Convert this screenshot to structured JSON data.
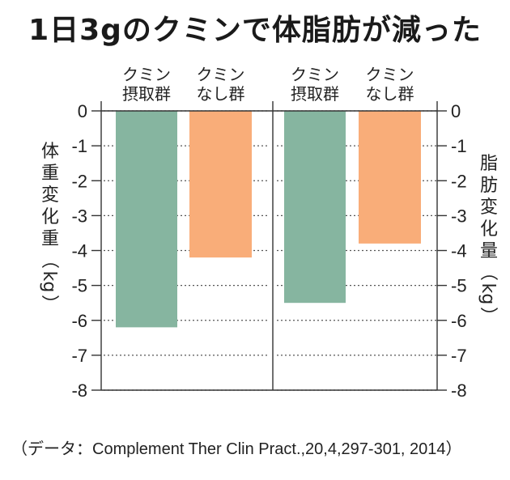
{
  "title": "1日3gのクミンで体脂肪が減った",
  "source": "（データ：Complement Ther Clin Pract.,20,4,297-301, 2014）",
  "chart_data": {
    "type": "bar",
    "panels": [
      {
        "ylabel": "体重変化重（kg）",
        "ylim": [
          -8,
          0
        ],
        "bars": [
          {
            "category": [
              "クミン",
              "摂取群"
            ],
            "value": -6.2,
            "color": "#86b5a0"
          },
          {
            "category": [
              "クミン",
              "なし群"
            ],
            "value": -4.2,
            "color": "#f9ad79"
          }
        ]
      },
      {
        "ylabel": "脂肪変化量（kg）",
        "ylim": [
          -8,
          0
        ],
        "bars": [
          {
            "category": [
              "クミン",
              "摂取群"
            ],
            "value": -5.5,
            "color": "#86b5a0"
          },
          {
            "category": [
              "クミン",
              "なし群"
            ],
            "value": -3.8,
            "color": "#f9ad79"
          }
        ]
      }
    ],
    "yticks": [
      "0",
      "-1",
      "-2",
      "-3",
      "-4",
      "-5",
      "-6",
      "-7",
      "-8"
    ],
    "grid": true
  }
}
